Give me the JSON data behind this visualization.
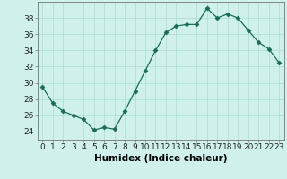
{
  "x": [
    0,
    1,
    2,
    3,
    4,
    5,
    6,
    7,
    8,
    9,
    10,
    11,
    12,
    13,
    14,
    15,
    16,
    17,
    18,
    19,
    20,
    21,
    22,
    23
  ],
  "y": [
    29.5,
    27.5,
    26.5,
    26,
    25.5,
    24.2,
    24.5,
    24.3,
    26.5,
    29,
    31.5,
    34,
    36.2,
    37,
    37.2,
    37.2,
    39.2,
    38,
    38.5,
    38,
    36.5,
    35,
    34.2,
    32.5
  ],
  "line_color": "#1a6b5a",
  "marker": "D",
  "marker_size": 2.5,
  "bg_color": "#cff0eb",
  "grid_color": "#aaddd8",
  "xlabel": "Humidex (Indice chaleur)",
  "xlim": [
    -0.5,
    23.5
  ],
  "ylim": [
    23,
    40
  ],
  "yticks": [
    24,
    26,
    28,
    30,
    32,
    34,
    36,
    38
  ],
  "xticks": [
    0,
    1,
    2,
    3,
    4,
    5,
    6,
    7,
    8,
    9,
    10,
    11,
    12,
    13,
    14,
    15,
    16,
    17,
    18,
    19,
    20,
    21,
    22,
    23
  ],
  "xlabel_fontsize": 7.5,
  "tick_fontsize": 6.5
}
